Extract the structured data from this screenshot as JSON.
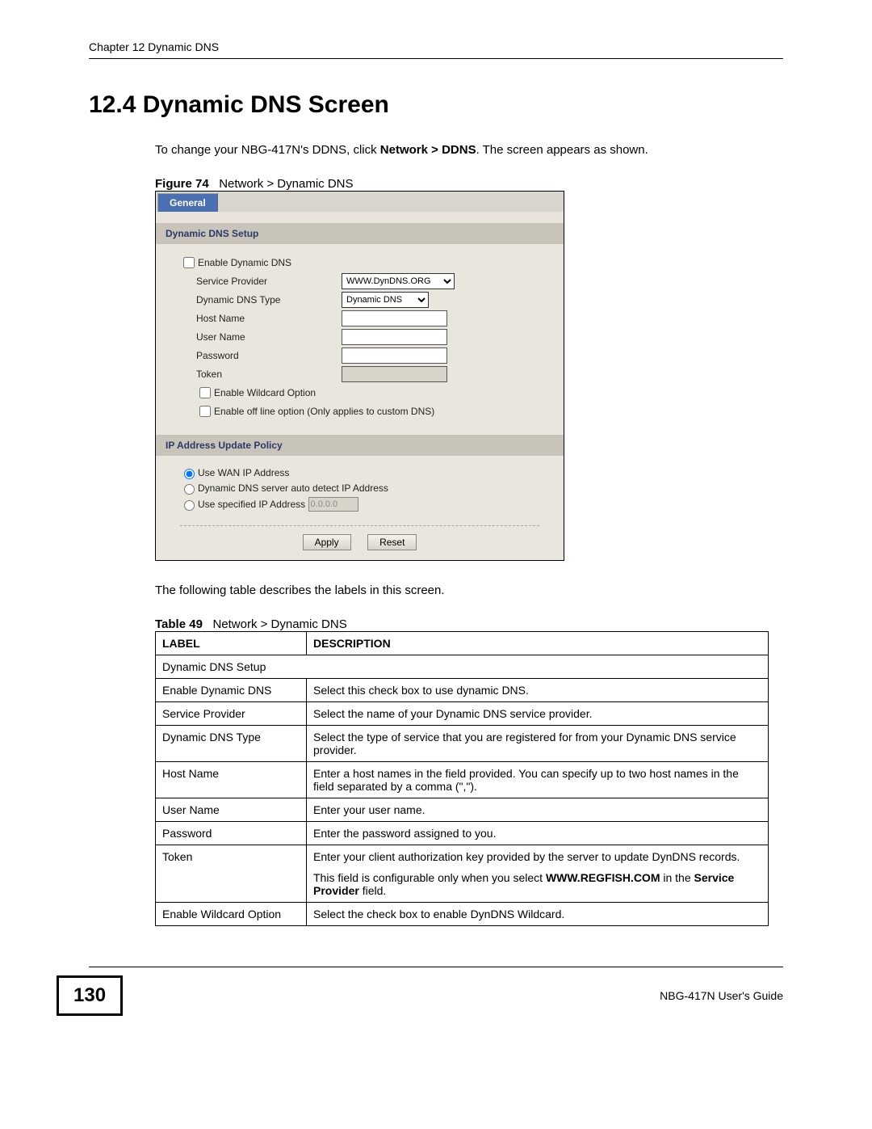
{
  "header": {
    "chapter": "Chapter 12 Dynamic DNS"
  },
  "section": {
    "number_title": "12.4  Dynamic DNS Screen",
    "intro_pre": "To change your NBG-417N's DDNS, click ",
    "intro_bold": "Network > DDNS",
    "intro_post": ". The screen appears as shown.",
    "following_text": "The following table describes the labels in this screen."
  },
  "figure": {
    "label": "Figure 74",
    "caption": "Network > Dynamic DNS"
  },
  "screenshot": {
    "tab": "General",
    "section1_title": "Dynamic DNS Setup",
    "enable_ddns": "Enable Dynamic DNS",
    "service_provider_label": "Service Provider",
    "service_provider_value": "WWW.DynDNS.ORG",
    "ddns_type_label": "Dynamic DNS Type",
    "ddns_type_value": "Dynamic DNS",
    "host_name_label": "Host Name",
    "user_name_label": "User Name",
    "password_label": "Password",
    "token_label": "Token",
    "enable_wildcard": "Enable Wildcard Option",
    "enable_offline": "Enable off line option (Only applies to custom DNS)",
    "section2_title": "IP Address Update Policy",
    "use_wan": "Use WAN IP Address",
    "auto_detect": "Dynamic DNS server auto detect IP Address",
    "use_specified": "Use specified IP Address",
    "specified_ip": "0.0.0.0",
    "apply_btn": "Apply",
    "reset_btn": "Reset"
  },
  "table": {
    "label": "Table 49",
    "caption": "Network > Dynamic DNS",
    "col_label": "LABEL",
    "col_desc": "DESCRIPTION",
    "rows": [
      {
        "label": "Dynamic DNS Setup",
        "desc": "",
        "span": true
      },
      {
        "label": "Enable Dynamic DNS",
        "desc": "Select this check box to use dynamic DNS."
      },
      {
        "label": "Service Provider",
        "desc": "Select the name of your Dynamic DNS service provider."
      },
      {
        "label": "Dynamic DNS Type",
        "desc": "Select the type of service that you are registered for from your Dynamic DNS service provider."
      },
      {
        "label": "Host Name",
        "desc": "Enter a host names in the field provided. You can specify up to two host names in the field separated by a comma (\",\")."
      },
      {
        "label": "User Name",
        "desc": "Enter your user name."
      },
      {
        "label": "Password",
        "desc": "Enter the password assigned to you."
      },
      {
        "label": "Token",
        "desc_html": true,
        "desc_p1": "Enter your client authorization key provided by the server to update DynDNS records.",
        "desc_p2a": "This field is configurable only when you select ",
        "desc_p2b": "WWW.REGFISH.COM",
        "desc_p2c": " in the ",
        "desc_p2d": "Service Provider",
        "desc_p2e": " field."
      },
      {
        "label": "Enable Wildcard Option",
        "desc": "Select the check box to enable DynDNS Wildcard."
      }
    ]
  },
  "footer": {
    "page_number": "130",
    "guide": "NBG-417N User's Guide"
  }
}
